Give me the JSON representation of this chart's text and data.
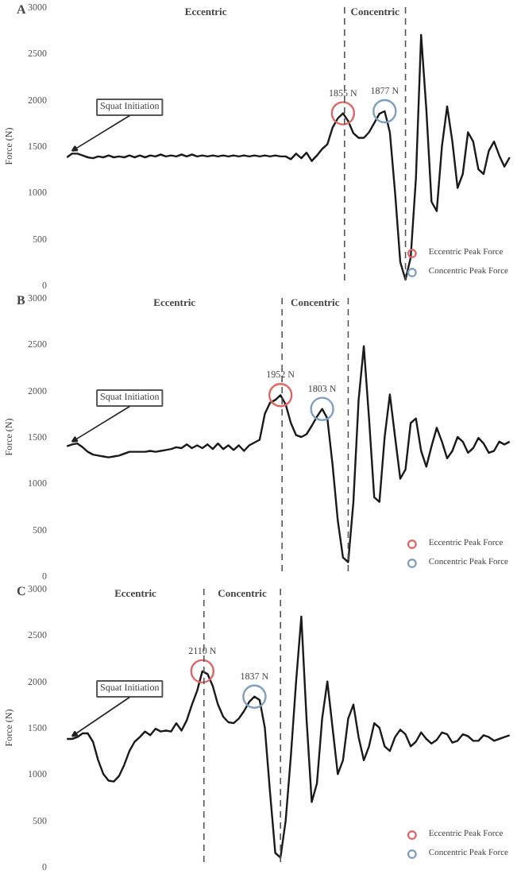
{
  "chart_data": [
    {
      "type": "line",
      "title": "A",
      "ylabel": "Force (N)",
      "categories": [
        null,
        null,
        null,
        null,
        null,
        null,
        null,
        null,
        null,
        null,
        null,
        null,
        null,
        null,
        null,
        null,
        null,
        null,
        null,
        null,
        null,
        null,
        null,
        null,
        null,
        null,
        null,
        null,
        null,
        null,
        null,
        null,
        null,
        null,
        null,
        null,
        null,
        null,
        null,
        null,
        null,
        null,
        null,
        null,
        null,
        null,
        null,
        null,
        null,
        null,
        null,
        null,
        null,
        null,
        null,
        null,
        null,
        null,
        null,
        null,
        null,
        null,
        null,
        null,
        null,
        null,
        null,
        null,
        null,
        null,
        null,
        null,
        null,
        null,
        null,
        null,
        null,
        null,
        null,
        null,
        null,
        null,
        null,
        null,
        null,
        null
      ],
      "ylim": [
        0,
        3000
      ],
      "yticks": [
        0,
        500,
        1000,
        1500,
        2000,
        2500,
        3000
      ],
      "grid": false,
      "legend": "bottom right",
      "tick_labels": "y",
      "annotations": [
        "Squat Initiation",
        "Eccentric",
        "Concentric"
      ],
      "series": [
        {
          "color": "#1a1a1a",
          "values": [
            1380,
            1420,
            1420,
            1400,
            1380,
            1370,
            1390,
            1380,
            1400,
            1380,
            1390,
            1380,
            1400,
            1380,
            1400,
            1380,
            1400,
            1390,
            1410,
            1390,
            1400,
            1390,
            1410,
            1390,
            1410,
            1390,
            1400,
            1390,
            1400,
            1390,
            1400,
            1390,
            1400,
            1390,
            1400,
            1390,
            1400,
            1390,
            1400,
            1390,
            1400,
            1390,
            1390,
            1360,
            1420,
            1370,
            1430,
            1340,
            1400,
            1470,
            1520,
            1700,
            1800,
            1855,
            1770,
            1640,
            1590,
            1590,
            1650,
            1750,
            1850,
            1877,
            1650,
            1000,
            250,
            60,
            300,
            1150,
            2700,
            1900,
            900,
            800,
            1500,
            1930,
            1550,
            1050,
            1200,
            1650,
            1550,
            1250,
            1200,
            1450,
            1550,
            1400,
            1280,
            1380
          ]
        },
        {
          "name": "Eccentric Peak Force",
          "type": "scatter",
          "marker": "circle",
          "color": "#e06666",
          "values": [
            null,
            null,
            null,
            null,
            null,
            null,
            null,
            null,
            null,
            null,
            null,
            null,
            null,
            null,
            null,
            null,
            null,
            null,
            null,
            null,
            null,
            null,
            null,
            null,
            null,
            null,
            null,
            null,
            null,
            null,
            null,
            null,
            null,
            null,
            null,
            null,
            null,
            null,
            null,
            null,
            null,
            null,
            null,
            null,
            null,
            null,
            null,
            null,
            null,
            null,
            null,
            null,
            null,
            1855,
            null,
            null,
            null,
            null,
            null,
            null,
            null,
            null,
            null,
            null,
            null,
            null,
            null,
            null,
            null,
            null,
            null,
            null,
            null,
            null,
            null,
            null,
            null,
            null,
            null,
            null,
            null,
            null,
            null,
            null,
            null,
            null
          ],
          "value_labels": [
            null,
            null,
            null,
            null,
            null,
            null,
            null,
            null,
            null,
            null,
            null,
            null,
            null,
            null,
            null,
            null,
            null,
            null,
            null,
            null,
            null,
            null,
            null,
            null,
            null,
            null,
            null,
            null,
            null,
            null,
            null,
            null,
            null,
            null,
            null,
            null,
            null,
            null,
            null,
            null,
            null,
            null,
            null,
            null,
            null,
            null,
            null,
            null,
            null,
            null,
            null,
            null,
            null,
            "1855 N",
            null,
            null,
            null,
            null,
            null,
            null,
            null,
            null,
            null,
            null,
            null,
            null,
            null,
            null,
            null,
            null,
            null,
            null,
            null,
            null,
            null,
            null,
            null,
            null,
            null,
            null,
            null,
            null,
            null,
            null,
            null,
            null
          ]
        },
        {
          "name": "Concentric Peak Force",
          "type": "scatter",
          "marker": "circle",
          "color": "#7f9fbf",
          "values": [
            null,
            null,
            null,
            null,
            null,
            null,
            null,
            null,
            null,
            null,
            null,
            null,
            null,
            null,
            null,
            null,
            null,
            null,
            null,
            null,
            null,
            null,
            null,
            null,
            null,
            null,
            null,
            null,
            null,
            null,
            null,
            null,
            null,
            null,
            null,
            null,
            null,
            null,
            null,
            null,
            null,
            null,
            null,
            null,
            null,
            null,
            null,
            null,
            null,
            null,
            null,
            null,
            null,
            null,
            null,
            null,
            null,
            null,
            null,
            null,
            null,
            1877,
            null,
            null,
            null,
            null,
            null,
            null,
            null,
            null,
            null,
            null,
            null,
            null,
            null,
            null,
            null,
            null,
            null,
            null,
            null,
            null,
            null,
            null,
            null,
            null
          ],
          "value_labels": [
            null,
            null,
            null,
            null,
            null,
            null,
            null,
            null,
            null,
            null,
            null,
            null,
            null,
            null,
            null,
            null,
            null,
            null,
            null,
            null,
            null,
            null,
            null,
            null,
            null,
            null,
            null,
            null,
            null,
            null,
            null,
            null,
            null,
            null,
            null,
            null,
            null,
            null,
            null,
            null,
            null,
            null,
            null,
            null,
            null,
            null,
            null,
            null,
            null,
            null,
            null,
            null,
            null,
            null,
            null,
            null,
            null,
            null,
            null,
            null,
            null,
            "1877 N",
            null,
            null,
            null,
            null,
            null,
            null,
            null,
            null,
            null,
            null,
            null,
            null,
            null,
            null,
            null,
            null,
            null,
            null,
            null,
            null,
            null,
            null,
            null,
            null
          ]
        }
      ]
    },
    {
      "type": "line",
      "title": "B",
      "ylabel": "Force (N)",
      "categories": [
        null,
        null,
        null,
        null,
        null,
        null,
        null,
        null,
        null,
        null,
        null,
        null,
        null,
        null,
        null,
        null,
        null,
        null,
        null,
        null,
        null,
        null,
        null,
        null,
        null,
        null,
        null,
        null,
        null,
        null,
        null,
        null,
        null,
        null,
        null,
        null,
        null,
        null,
        null,
        null,
        null,
        null,
        null,
        null,
        null,
        null,
        null,
        null,
        null,
        null,
        null,
        null,
        null,
        null,
        null,
        null,
        null,
        null,
        null,
        null,
        null,
        null,
        null,
        null,
        null,
        null,
        null,
        null,
        null,
        null,
        null,
        null,
        null,
        null,
        null,
        null,
        null,
        null,
        null,
        null,
        null,
        null,
        null,
        null,
        null,
        null
      ],
      "ylim": [
        0,
        3000
      ],
      "yticks": [
        0,
        500,
        1000,
        1500,
        2000,
        2500,
        3000
      ],
      "grid": false,
      "legend": "bottom right",
      "tick_labels": "y",
      "annotations": [
        "Squat Initiation",
        "Eccentric",
        "Concentric"
      ],
      "series": [
        {
          "color": "#1a1a1a",
          "values": [
            1400,
            1420,
            1430,
            1390,
            1340,
            1310,
            1300,
            1290,
            1280,
            1290,
            1300,
            1320,
            1340,
            1340,
            1340,
            1340,
            1350,
            1340,
            1350,
            1360,
            1370,
            1390,
            1380,
            1420,
            1380,
            1410,
            1380,
            1420,
            1370,
            1430,
            1370,
            1410,
            1360,
            1410,
            1350,
            1410,
            1440,
            1470,
            1750,
            1870,
            1900,
            1952,
            1850,
            1650,
            1520,
            1500,
            1530,
            1620,
            1720,
            1803,
            1700,
            1200,
            600,
            200,
            150,
            800,
            1900,
            2480,
            1700,
            850,
            800,
            1500,
            1960,
            1500,
            1050,
            1150,
            1650,
            1700,
            1350,
            1180,
            1400,
            1600,
            1450,
            1270,
            1350,
            1500,
            1450,
            1330,
            1380,
            1490,
            1430,
            1330,
            1350,
            1450,
            1420,
            1450
          ]
        },
        {
          "name": "Eccentric Peak Force",
          "type": "scatter",
          "marker": "circle",
          "color": "#e06666",
          "values": [
            null,
            null,
            null,
            null,
            null,
            null,
            null,
            null,
            null,
            null,
            null,
            null,
            null,
            null,
            null,
            null,
            null,
            null,
            null,
            null,
            null,
            null,
            null,
            null,
            null,
            null,
            null,
            null,
            null,
            null,
            null,
            null,
            null,
            null,
            null,
            null,
            null,
            null,
            null,
            null,
            null,
            1952,
            null,
            null,
            null,
            null,
            null,
            null,
            null,
            null,
            null,
            null,
            null,
            null,
            null,
            null,
            null,
            null,
            null,
            null,
            null,
            null,
            null,
            null,
            null,
            null,
            null,
            null,
            null,
            null,
            null,
            null,
            null,
            null,
            null,
            null,
            null,
            null,
            null,
            null,
            null,
            null,
            null,
            null,
            null,
            null
          ],
          "value_labels": [
            null,
            null,
            null,
            null,
            null,
            null,
            null,
            null,
            null,
            null,
            null,
            null,
            null,
            null,
            null,
            null,
            null,
            null,
            null,
            null,
            null,
            null,
            null,
            null,
            null,
            null,
            null,
            null,
            null,
            null,
            null,
            null,
            null,
            null,
            null,
            null,
            null,
            null,
            null,
            null,
            null,
            "1952 N",
            null,
            null,
            null,
            null,
            null,
            null,
            null,
            null,
            null,
            null,
            null,
            null,
            null,
            null,
            null,
            null,
            null,
            null,
            null,
            null,
            null,
            null,
            null,
            null,
            null,
            null,
            null,
            null,
            null,
            null,
            null,
            null,
            null,
            null,
            null,
            null,
            null,
            null,
            null,
            null,
            null,
            null,
            null,
            null
          ]
        },
        {
          "name": "Concentric Peak Force",
          "type": "scatter",
          "marker": "circle",
          "color": "#7f9fbf",
          "values": [
            null,
            null,
            null,
            null,
            null,
            null,
            null,
            null,
            null,
            null,
            null,
            null,
            null,
            null,
            null,
            null,
            null,
            null,
            null,
            null,
            null,
            null,
            null,
            null,
            null,
            null,
            null,
            null,
            null,
            null,
            null,
            null,
            null,
            null,
            null,
            null,
            null,
            null,
            null,
            null,
            null,
            null,
            null,
            null,
            null,
            null,
            null,
            null,
            null,
            1803,
            null,
            null,
            null,
            null,
            null,
            null,
            null,
            null,
            null,
            null,
            null,
            null,
            null,
            null,
            null,
            null,
            null,
            null,
            null,
            null,
            null,
            null,
            null,
            null,
            null,
            null,
            null,
            null,
            null,
            null,
            null,
            null,
            null,
            null,
            null,
            null
          ],
          "value_labels": [
            null,
            null,
            null,
            null,
            null,
            null,
            null,
            null,
            null,
            null,
            null,
            null,
            null,
            null,
            null,
            null,
            null,
            null,
            null,
            null,
            null,
            null,
            null,
            null,
            null,
            null,
            null,
            null,
            null,
            null,
            null,
            null,
            null,
            null,
            null,
            null,
            null,
            null,
            null,
            null,
            null,
            null,
            null,
            null,
            null,
            null,
            null,
            null,
            null,
            "1803 N",
            null,
            null,
            null,
            null,
            null,
            null,
            null,
            null,
            null,
            null,
            null,
            null,
            null,
            null,
            null,
            null,
            null,
            null,
            null,
            null,
            null,
            null,
            null,
            null,
            null,
            null,
            null,
            null,
            null,
            null,
            null,
            null,
            null,
            null,
            null,
            null
          ]
        }
      ]
    },
    {
      "type": "line",
      "title": "C",
      "ylabel": "Force (N)",
      "categories": [
        null,
        null,
        null,
        null,
        null,
        null,
        null,
        null,
        null,
        null,
        null,
        null,
        null,
        null,
        null,
        null,
        null,
        null,
        null,
        null,
        null,
        null,
        null,
        null,
        null,
        null,
        null,
        null,
        null,
        null,
        null,
        null,
        null,
        null,
        null,
        null,
        null,
        null,
        null,
        null,
        null,
        null,
        null,
        null,
        null,
        null,
        null,
        null,
        null,
        null,
        null,
        null,
        null,
        null,
        null,
        null,
        null,
        null,
        null,
        null,
        null,
        null,
        null,
        null,
        null,
        null,
        null,
        null,
        null,
        null,
        null,
        null,
        null,
        null,
        null,
        null,
        null,
        null,
        null,
        null,
        null,
        null,
        null,
        null,
        null,
        null
      ],
      "ylim": [
        0,
        3000
      ],
      "yticks": [
        0,
        500,
        1000,
        1500,
        2000,
        2500,
        3000
      ],
      "grid": false,
      "legend": "bottom right",
      "tick_labels": "y",
      "annotations": [
        "Squat Initiation",
        "Eccentric",
        "Concentric"
      ],
      "series": [
        {
          "color": "#1a1a1a",
          "values": [
            1380,
            1380,
            1400,
            1440,
            1440,
            1350,
            1150,
            1000,
            930,
            920,
            980,
            1100,
            1250,
            1350,
            1400,
            1460,
            1420,
            1490,
            1460,
            1470,
            1460,
            1550,
            1470,
            1580,
            1750,
            1900,
            2110,
            2080,
            1950,
            1750,
            1620,
            1560,
            1550,
            1600,
            1680,
            1780,
            1837,
            1800,
            1500,
            800,
            150,
            100,
            500,
            1200,
            2000,
            2700,
            1600,
            700,
            900,
            1600,
            2000,
            1500,
            1000,
            1150,
            1600,
            1750,
            1400,
            1150,
            1300,
            1550,
            1500,
            1300,
            1250,
            1400,
            1480,
            1430,
            1300,
            1350,
            1450,
            1380,
            1330,
            1370,
            1450,
            1430,
            1340,
            1360,
            1430,
            1410,
            1360,
            1360,
            1420,
            1400,
            1360,
            1380,
            1400,
            1420
          ]
        },
        {
          "name": "Eccentric Peak Force",
          "type": "scatter",
          "marker": "circle",
          "color": "#e06666",
          "values": [
            null,
            null,
            null,
            null,
            null,
            null,
            null,
            null,
            null,
            null,
            null,
            null,
            null,
            null,
            null,
            null,
            null,
            null,
            null,
            null,
            null,
            null,
            null,
            null,
            null,
            null,
            2110,
            null,
            null,
            null,
            null,
            null,
            null,
            null,
            null,
            null,
            null,
            null,
            null,
            null,
            null,
            null,
            null,
            null,
            null,
            null,
            null,
            null,
            null,
            null,
            null,
            null,
            null,
            null,
            null,
            null,
            null,
            null,
            null,
            null,
            null,
            null,
            null,
            null,
            null,
            null,
            null,
            null,
            null,
            null,
            null,
            null,
            null,
            null,
            null,
            null,
            null,
            null,
            null,
            null,
            null,
            null,
            null,
            null,
            null,
            null
          ],
          "value_labels": [
            null,
            null,
            null,
            null,
            null,
            null,
            null,
            null,
            null,
            null,
            null,
            null,
            null,
            null,
            null,
            null,
            null,
            null,
            null,
            null,
            null,
            null,
            null,
            null,
            null,
            null,
            "2110 N",
            null,
            null,
            null,
            null,
            null,
            null,
            null,
            null,
            null,
            null,
            null,
            null,
            null,
            null,
            null,
            null,
            null,
            null,
            null,
            null,
            null,
            null,
            null,
            null,
            null,
            null,
            null,
            null,
            null,
            null,
            null,
            null,
            null,
            null,
            null,
            null,
            null,
            null,
            null,
            null,
            null,
            null,
            null,
            null,
            null,
            null,
            null,
            null,
            null,
            null,
            null,
            null,
            null,
            null,
            null,
            null,
            null,
            null,
            null
          ]
        },
        {
          "name": "Concentric Peak Force",
          "type": "scatter",
          "marker": "circle",
          "color": "#7f9fbf",
          "values": [
            null,
            null,
            null,
            null,
            null,
            null,
            null,
            null,
            null,
            null,
            null,
            null,
            null,
            null,
            null,
            null,
            null,
            null,
            null,
            null,
            null,
            null,
            null,
            null,
            null,
            null,
            null,
            null,
            null,
            null,
            null,
            null,
            null,
            null,
            null,
            null,
            1837,
            null,
            null,
            null,
            null,
            null,
            null,
            null,
            null,
            null,
            null,
            null,
            null,
            null,
            null,
            null,
            null,
            null,
            null,
            null,
            null,
            null,
            null,
            null,
            null,
            null,
            null,
            null,
            null,
            null,
            null,
            null,
            null,
            null,
            null,
            null,
            null,
            null,
            null,
            null,
            null,
            null,
            null,
            null,
            null,
            null,
            null,
            null,
            null,
            null
          ],
          "value_labels": [
            null,
            null,
            null,
            null,
            null,
            null,
            null,
            null,
            null,
            null,
            null,
            null,
            null,
            null,
            null,
            null,
            null,
            null,
            null,
            null,
            null,
            null,
            null,
            null,
            null,
            null,
            null,
            null,
            null,
            null,
            null,
            null,
            null,
            null,
            null,
            null,
            "1837 N",
            null,
            null,
            null,
            null,
            null,
            null,
            null,
            null,
            null,
            null,
            null,
            null,
            null,
            null,
            null,
            null,
            null,
            null,
            null,
            null,
            null,
            null,
            null,
            null,
            null,
            null,
            null,
            null,
            null,
            null,
            null,
            null,
            null,
            null,
            null,
            null,
            null,
            null,
            null,
            null,
            null,
            null,
            null,
            null,
            null,
            null,
            null,
            null,
            null
          ]
        }
      ]
    }
  ]
}
